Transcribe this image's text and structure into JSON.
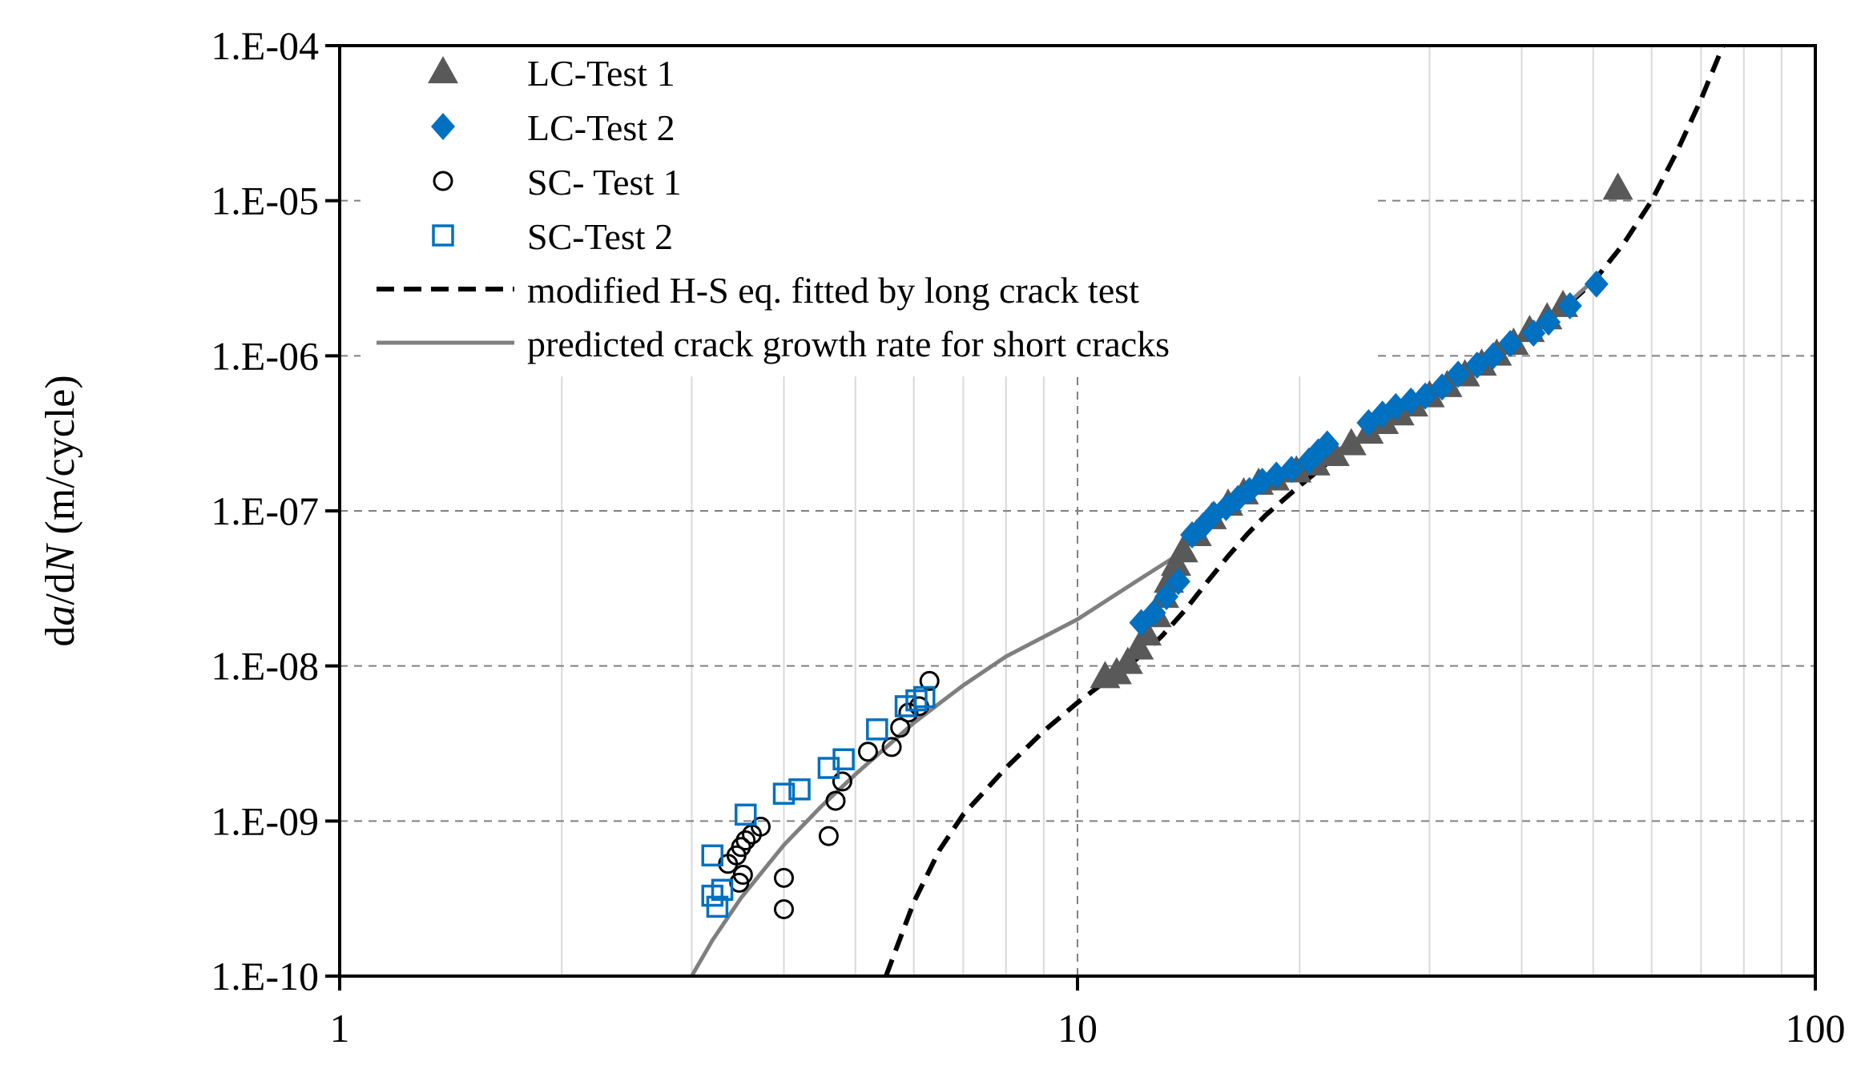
{
  "chart_data": {
    "type": "scatter",
    "title": "",
    "xlabel": "",
    "ylabel": {
      "prefix": "d",
      "a": "a",
      "mid": "/d",
      "N": "N",
      "suffix": " (m/cycle)"
    },
    "x_scale": "log",
    "y_scale": "log",
    "xlim": [
      1,
      100
    ],
    "ylim": [
      1e-10,
      0.0001
    ],
    "x_ticks": [
      1,
      10,
      100
    ],
    "x_tick_labels": [
      "1",
      "10",
      "100"
    ],
    "y_ticks": [
      1e-10,
      1e-09,
      1e-08,
      1e-07,
      1e-06,
      1e-05,
      0.0001
    ],
    "y_tick_labels": [
      "1.E-10",
      "1.E-09",
      "1.E-08",
      "1.E-07",
      "1.E-06",
      "1.E-05",
      "1.E-04"
    ],
    "grid": {
      "x_minor": true,
      "x_major": "dashed",
      "y_major": "dashed"
    },
    "legend_position": "top-left",
    "series": [
      {
        "name": "LC-Test 1",
        "marker": "triangle",
        "color": "#595959",
        "points": [
          [
            10.9,
            8.5e-09
          ],
          [
            11.3,
            9e-09
          ],
          [
            11.7,
            1.05e-08
          ],
          [
            12.1,
            1.3e-08
          ],
          [
            12.4,
            1.6e-08
          ],
          [
            12.8,
            2.1e-08
          ],
          [
            13.1,
            2.8e-08
          ],
          [
            13.3,
            3.5e-08
          ],
          [
            13.6,
            4.5e-08
          ],
          [
            13.9,
            5.5e-08
          ],
          [
            14.5,
            7e-08
          ],
          [
            15.2,
            9e-08
          ],
          [
            16,
            1.1e-07
          ],
          [
            16.8,
            1.3e-07
          ],
          [
            17.6,
            1.5e-07
          ],
          [
            18.5,
            1.6e-07
          ],
          [
            19.8,
            1.8e-07
          ],
          [
            21,
            2e-07
          ],
          [
            22.3,
            2.3e-07
          ],
          [
            23.5,
            2.7e-07
          ],
          [
            24.8,
            3.2e-07
          ],
          [
            26,
            3.7e-07
          ],
          [
            27.3,
            4.2e-07
          ],
          [
            28.5,
            4.8e-07
          ],
          [
            30,
            5.5e-07
          ],
          [
            31.7,
            6.4e-07
          ],
          [
            33.5,
            7.5e-07
          ],
          [
            35.3,
            8.8e-07
          ],
          [
            37,
            1.02e-06
          ],
          [
            39,
            1.2e-06
          ],
          [
            41,
            1.45e-06
          ],
          [
            43.3,
            1.75e-06
          ],
          [
            45.5,
            2.1e-06
          ],
          [
            54,
            1.2e-05
          ]
        ]
      },
      {
        "name": "LC-Test 2",
        "marker": "diamond",
        "color": "#0070c0",
        "points": [
          [
            12.2,
            1.9e-08
          ],
          [
            12.7,
            2.2e-08
          ],
          [
            13.2,
            2.8e-08
          ],
          [
            13.7,
            3.5e-08
          ],
          [
            14.3,
            7e-08
          ],
          [
            14.8,
            8e-08
          ],
          [
            15.3,
            9.5e-08
          ],
          [
            15.9,
            1.05e-07
          ],
          [
            16.5,
            1.2e-07
          ],
          [
            17.1,
            1.35e-07
          ],
          [
            17.8,
            1.55e-07
          ],
          [
            18.6,
            1.7e-07
          ],
          [
            19.5,
            1.85e-07
          ],
          [
            20.6,
            2.1e-07
          ],
          [
            21.2,
            2.4e-07
          ],
          [
            21.8,
            2.7e-07
          ],
          [
            24.8,
            3.7e-07
          ],
          [
            25.9,
            4.2e-07
          ],
          [
            27,
            4.7e-07
          ],
          [
            28.3,
            5.1e-07
          ],
          [
            29.6,
            5.5e-07
          ],
          [
            31.2,
            6.3e-07
          ],
          [
            32.8,
            7.6e-07
          ],
          [
            34.8,
            8.7e-07
          ],
          [
            36.6,
            1e-06
          ],
          [
            38.6,
            1.2e-06
          ],
          [
            41.5,
            1.4e-06
          ],
          [
            43.5,
            1.65e-06
          ],
          [
            46.5,
            2.1e-06
          ],
          [
            50.5,
            2.9e-06
          ]
        ]
      },
      {
        "name": "SC- Test 1",
        "marker": "circle",
        "color": "#000000",
        "points": [
          [
            3.36,
            5.3e-10
          ],
          [
            3.45,
            6e-10
          ],
          [
            3.5,
            6.8e-10
          ],
          [
            3.55,
            7.5e-10
          ],
          [
            3.62,
            8.2e-10
          ],
          [
            3.72,
            9.2e-10
          ],
          [
            3.48,
            4e-10
          ],
          [
            3.52,
            4.5e-10
          ],
          [
            4,
            4.3e-10
          ],
          [
            4,
            2.7e-10
          ],
          [
            4.6,
            8e-10
          ],
          [
            4.7,
            1.35e-09
          ],
          [
            4.8,
            1.8e-09
          ],
          [
            5.2,
            2.8e-09
          ],
          [
            5.6,
            3e-09
          ],
          [
            5.75,
            4e-09
          ],
          [
            5.9,
            5e-09
          ],
          [
            6.1,
            5.5e-09
          ],
          [
            6.3,
            8e-09
          ]
        ]
      },
      {
        "name": "SC-Test  2",
        "marker": "square",
        "color": "#0070c0",
        "points": [
          [
            3.2,
            6e-10
          ],
          [
            3.2,
            3.3e-10
          ],
          [
            3.25,
            2.8e-10
          ],
          [
            3.3,
            3.6e-10
          ],
          [
            3.55,
            1.1e-09
          ],
          [
            4,
            1.5e-09
          ],
          [
            4.2,
            1.6e-09
          ],
          [
            4.6,
            2.2e-09
          ],
          [
            4.82,
            2.5e-09
          ],
          [
            5.35,
            3.9e-09
          ],
          [
            5.85,
            5.5e-09
          ],
          [
            6.05,
            6e-09
          ],
          [
            6.2,
            6.3e-09
          ]
        ]
      },
      {
        "name": "modified H-S eq. fitted by long crack test",
        "line": "dashed",
        "color": "#000000",
        "points": [
          [
            5.5,
            1e-10
          ],
          [
            6,
            3e-10
          ],
          [
            6.5,
            6.5e-10
          ],
          [
            7,
            1.1e-09
          ],
          [
            8,
            2.2e-09
          ],
          [
            9,
            3.8e-09
          ],
          [
            10,
            5.8e-09
          ],
          [
            11,
            8.2e-09
          ],
          [
            12,
            1.1e-08
          ],
          [
            13,
            1.55e-08
          ],
          [
            14,
            2.3e-08
          ],
          [
            15,
            3.5e-08
          ],
          [
            16,
            5.1e-08
          ],
          [
            17,
            7.1e-08
          ],
          [
            18,
            9.4e-08
          ],
          [
            20,
            1.45e-07
          ],
          [
            22,
            2.1e-07
          ],
          [
            25,
            3.2e-07
          ],
          [
            30,
            5.3e-07
          ],
          [
            35,
            8.2e-07
          ],
          [
            40,
            1.25e-06
          ],
          [
            45,
            1.9e-06
          ],
          [
            50,
            3e-06
          ],
          [
            55,
            5.3e-06
          ],
          [
            60,
            1e-05
          ],
          [
            65,
            2.1e-05
          ],
          [
            70,
            4.5e-05
          ],
          [
            75,
            0.0001
          ]
        ]
      },
      {
        "name": "predicted crack growth rate for short cracks",
        "line": "solid",
        "color": "#7f7f7f",
        "points": [
          [
            3,
            1e-10
          ],
          [
            3.2,
            1.7e-10
          ],
          [
            3.5,
            3.2e-10
          ],
          [
            4,
            7e-10
          ],
          [
            4.5,
            1.25e-09
          ],
          [
            5,
            2e-09
          ],
          [
            6,
            4.3e-09
          ],
          [
            7,
            7.5e-09
          ],
          [
            8,
            1.15e-08
          ],
          [
            10,
            2e-08
          ],
          [
            12,
            3.5e-08
          ],
          [
            13.5,
            5e-08
          ],
          [
            14.5,
            8e-08
          ],
          [
            15.5,
            1e-07
          ],
          [
            16.5,
            1.25e-07
          ],
          [
            18,
            1.5e-07
          ],
          [
            20,
            1.85e-07
          ],
          [
            22,
            2.3e-07
          ],
          [
            25,
            3.3e-07
          ],
          [
            30,
            5.4e-07
          ],
          [
            35,
            8.5e-07
          ],
          [
            40,
            1.3e-06
          ],
          [
            45,
            1.95e-06
          ],
          [
            50,
            3.05e-06
          ],
          [
            51,
            3.4e-06
          ]
        ]
      }
    ]
  }
}
